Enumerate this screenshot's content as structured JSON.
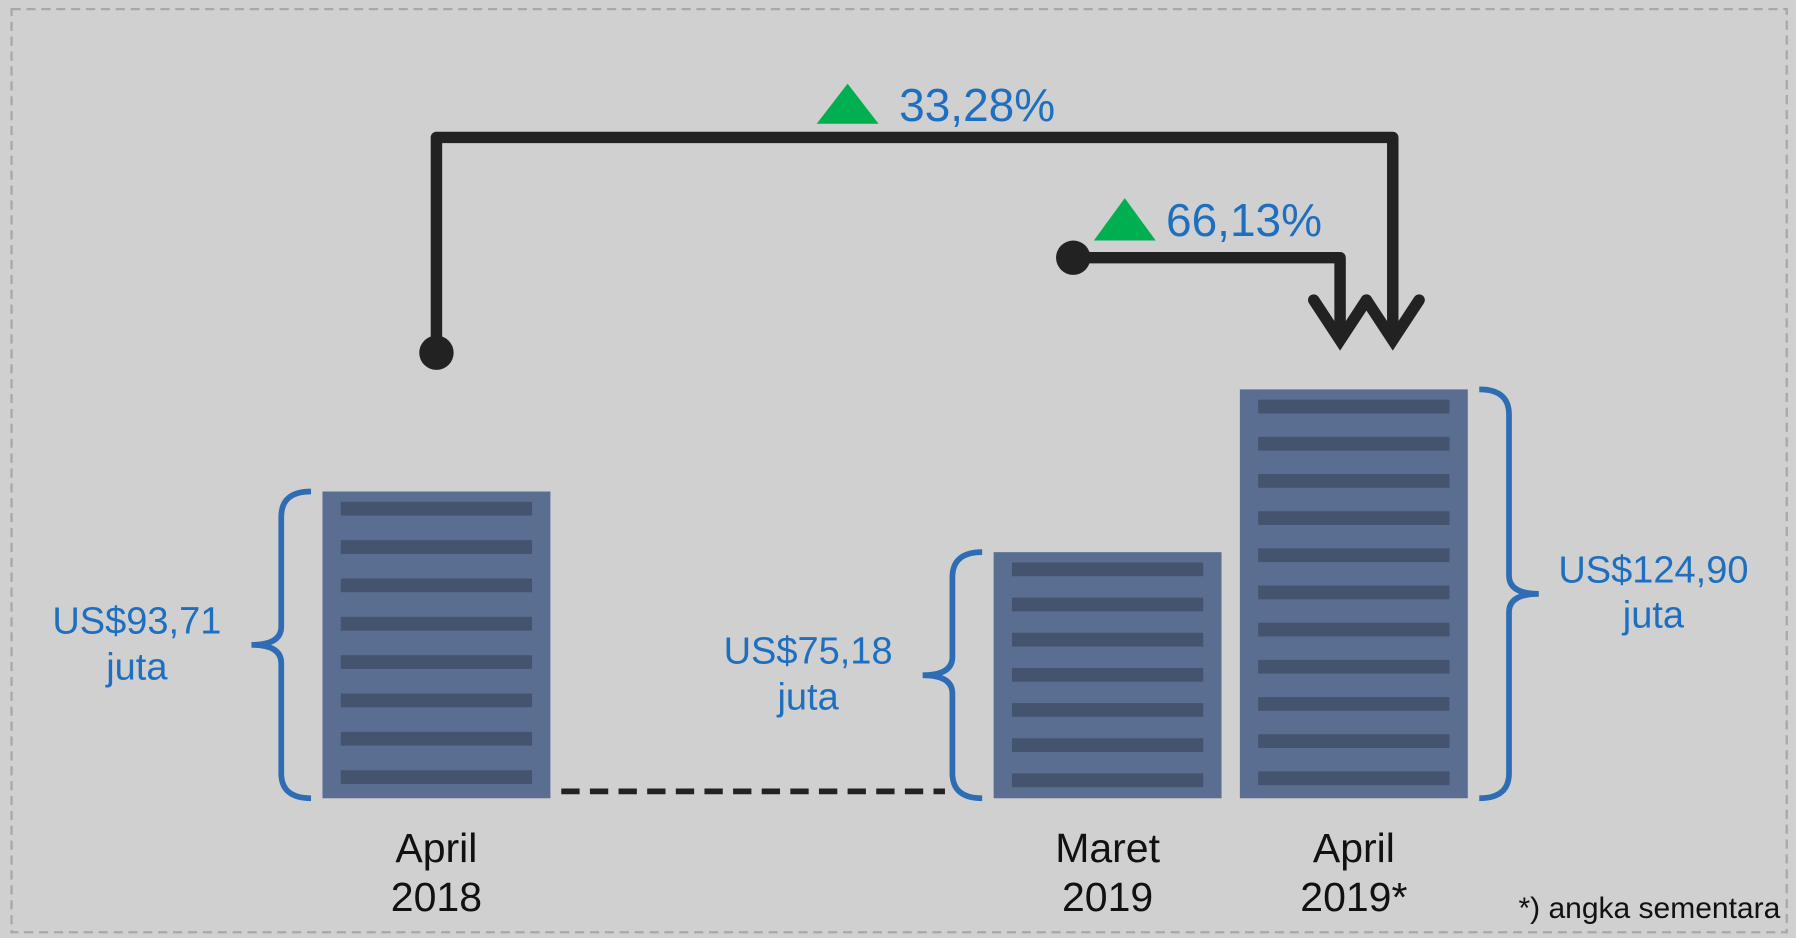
{
  "chart_data": {
    "type": "bar",
    "categories": [
      "April 2018",
      "Maret 2019",
      "April 2019*"
    ],
    "values": [
      93.71,
      75.18,
      124.9
    ],
    "value_labels": [
      "US$93,71 juta",
      "US$75,18 juta",
      "US$124,90 juta"
    ],
    "color": "#596e91",
    "annotations": [
      "33,28%",
      "66,13%"
    ],
    "note": "*) angka sementara"
  }
}
